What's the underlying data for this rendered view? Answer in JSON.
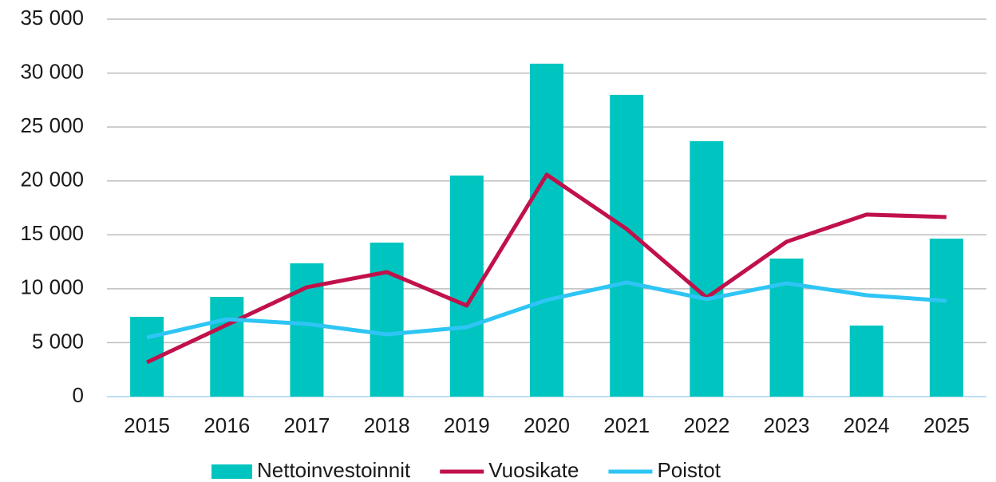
{
  "chart_data": {
    "type": "bar",
    "categories": [
      "2015",
      "2016",
      "2017",
      "2018",
      "2019",
      "2020",
      "2021",
      "2022",
      "2023",
      "2024",
      "2025"
    ],
    "series": [
      {
        "name": "Nettoinvestoinnit",
        "type": "bar",
        "color": "#00c4bf",
        "values": [
          7400,
          9250,
          12360,
          14280,
          20500,
          30870,
          27980,
          23690,
          12800,
          6590,
          14650
        ]
      },
      {
        "name": "Vuosikate",
        "type": "line",
        "color": "#c0114a",
        "values": [
          3180,
          6660,
          10140,
          11550,
          8440,
          20580,
          15540,
          9180,
          14360,
          16880,
          16650
        ]
      },
      {
        "name": "Poistot",
        "type": "line",
        "color": "#2ec5f5",
        "values": [
          5480,
          7180,
          6740,
          5770,
          6440,
          8960,
          10590,
          9030,
          10510,
          9400,
          8880
        ]
      }
    ],
    "ylim": [
      0,
      35000
    ],
    "yticks": [
      0,
      {
        "value": 5000,
        "label": "5 000"
      },
      {
        "value": 10000,
        "label": "10 000"
      },
      {
        "value": 15000,
        "label": "15 000"
      },
      {
        "value": 20000,
        "label": "20 000"
      },
      {
        "value": 25000,
        "label": "25 000"
      },
      {
        "value": 30000,
        "label": "30 000"
      },
      {
        "value": 35000,
        "label": "35 000"
      }
    ],
    "grid": true,
    "legend": "bottom"
  }
}
